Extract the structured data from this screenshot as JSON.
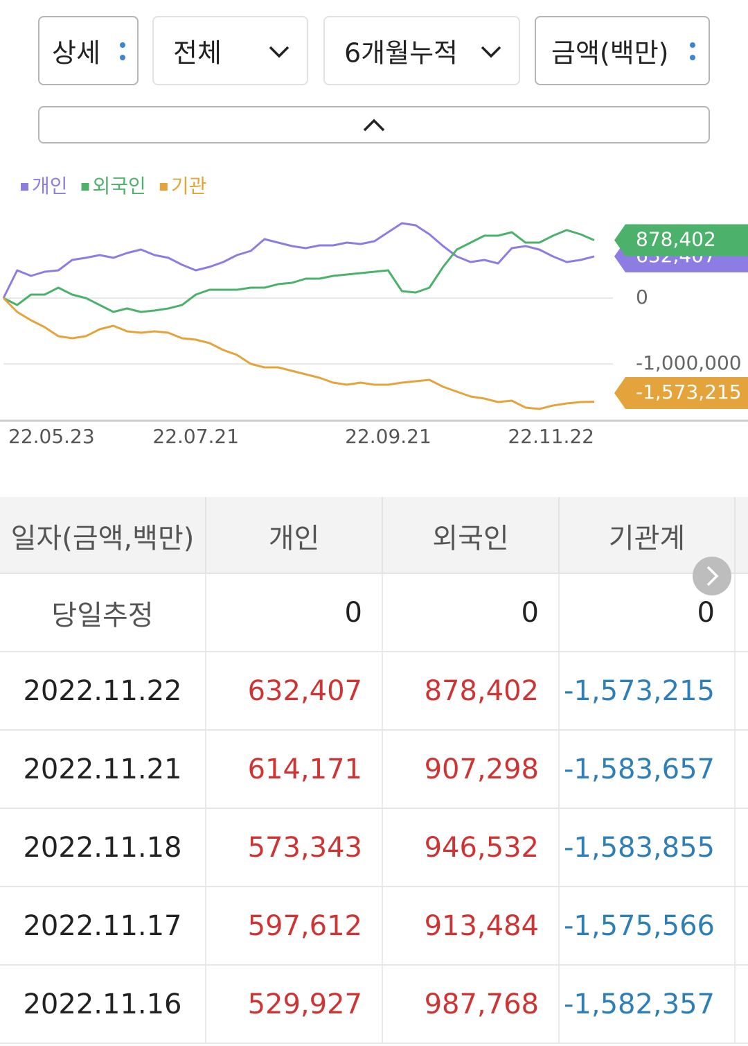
{
  "controls": [
    "상세",
    "전체",
    "6개월누적",
    "금액(백만)"
  ],
  "chart_data": {
    "type": "line",
    "categories": [
      "22.05.23",
      null,
      null,
      null,
      null,
      null,
      null,
      null,
      null,
      null,
      null,
      null,
      null,
      null,
      "22.07.21",
      null,
      null,
      null,
      null,
      null,
      null,
      null,
      null,
      null,
      null,
      null,
      null,
      null,
      "22.09.21",
      null,
      null,
      null,
      null,
      null,
      null,
      null,
      null,
      null,
      null,
      null,
      null,
      null,
      null,
      "22.11.22"
    ],
    "ylim": [
      -1842000,
      1263000
    ],
    "yticks": [
      0,
      {
        "value": -1000000,
        "label": "-1,000,000"
      }
    ],
    "grid": true,
    "series": [
      {
        "name": "개인",
        "color": "#8d7de3",
        "values": [
          0,
          421000,
          337000,
          400000,
          421000,
          579000,
          611000,
          653000,
          611000,
          684000,
          737000,
          653000,
          611000,
          505000,
          421000,
          474000,
          547000,
          653000,
          716000,
          895000,
          842000,
          789000,
          758000,
          800000,
          800000,
          842000,
          821000,
          863000,
          1000000,
          1137000,
          1105000,
          968000,
          789000,
          632000,
          547000,
          579000,
          526000,
          758000,
          789000,
          737000,
          632000,
          547000,
          579000,
          632407
        ],
        "value_labels": [
          null,
          null,
          null,
          null,
          null,
          null,
          null,
          null,
          null,
          null,
          null,
          null,
          null,
          null,
          null,
          null,
          null,
          null,
          null,
          null,
          null,
          null,
          null,
          null,
          null,
          null,
          null,
          null,
          null,
          null,
          null,
          null,
          null,
          null,
          null,
          null,
          null,
          null,
          null,
          null,
          null,
          null,
          null,
          "632,407"
        ]
      },
      {
        "name": "외국인",
        "color": "#4cb26b",
        "values": [
          0,
          -105000,
          53000,
          53000,
          158000,
          53000,
          0,
          -105000,
          -211000,
          -158000,
          -211000,
          -189000,
          -158000,
          -105000,
          53000,
          126000,
          126000,
          126000,
          158000,
          158000,
          211000,
          232000,
          295000,
          295000,
          337000,
          358000,
          379000,
          400000,
          421000,
          105000,
          84000,
          158000,
          474000,
          737000,
          842000,
          947000,
          947000,
          1000000,
          842000,
          842000,
          947000,
          1032000,
          968000,
          878402
        ],
        "value_labels": [
          null,
          null,
          null,
          null,
          null,
          null,
          null,
          null,
          null,
          null,
          null,
          null,
          null,
          null,
          null,
          null,
          null,
          null,
          null,
          null,
          null,
          null,
          null,
          null,
          null,
          null,
          null,
          null,
          null,
          null,
          null,
          null,
          null,
          null,
          null,
          null,
          null,
          null,
          null,
          null,
          null,
          null,
          null,
          "878,402"
        ]
      },
      {
        "name": "기관",
        "color": "#e4a43b",
        "values": [
          0,
          -211000,
          -337000,
          -442000,
          -579000,
          -611000,
          -579000,
          -474000,
          -421000,
          -505000,
          -526000,
          -505000,
          -526000,
          -611000,
          -632000,
          -684000,
          -789000,
          -863000,
          -1000000,
          -1053000,
          -1053000,
          -1105000,
          -1158000,
          -1211000,
          -1284000,
          -1316000,
          -1284000,
          -1316000,
          -1316000,
          -1284000,
          -1263000,
          -1242000,
          -1347000,
          -1421000,
          -1495000,
          -1526000,
          -1579000,
          -1558000,
          -1663000,
          -1684000,
          -1632000,
          -1600000,
          -1579000,
          -1573215
        ],
        "value_labels": [
          null,
          null,
          null,
          null,
          null,
          null,
          null,
          null,
          null,
          null,
          null,
          null,
          null,
          null,
          null,
          null,
          null,
          null,
          null,
          null,
          null,
          null,
          null,
          null,
          null,
          null,
          null,
          null,
          null,
          null,
          null,
          null,
          null,
          null,
          null,
          null,
          null,
          null,
          null,
          null,
          null,
          null,
          null,
          "-1,573,215"
        ]
      }
    ]
  },
  "table": {
    "header": [
      "일자(금액,백만)",
      "개인",
      "외국인",
      "기관계"
    ],
    "rows": [
      [
        "당일추정",
        "0",
        "0",
        "0"
      ],
      [
        "2022.11.22",
        "632,407",
        "878,402",
        "-1,573,215"
      ],
      [
        "2022.11.21",
        "614,171",
        "907,298",
        "-1,583,657"
      ],
      [
        "2022.11.18",
        "573,343",
        "946,532",
        "-1,583,855"
      ],
      [
        "2022.11.17",
        "597,612",
        "913,484",
        "-1,575,566"
      ],
      [
        "2022.11.16",
        "529,927",
        "987,768",
        "-1,582,357"
      ]
    ]
  }
}
